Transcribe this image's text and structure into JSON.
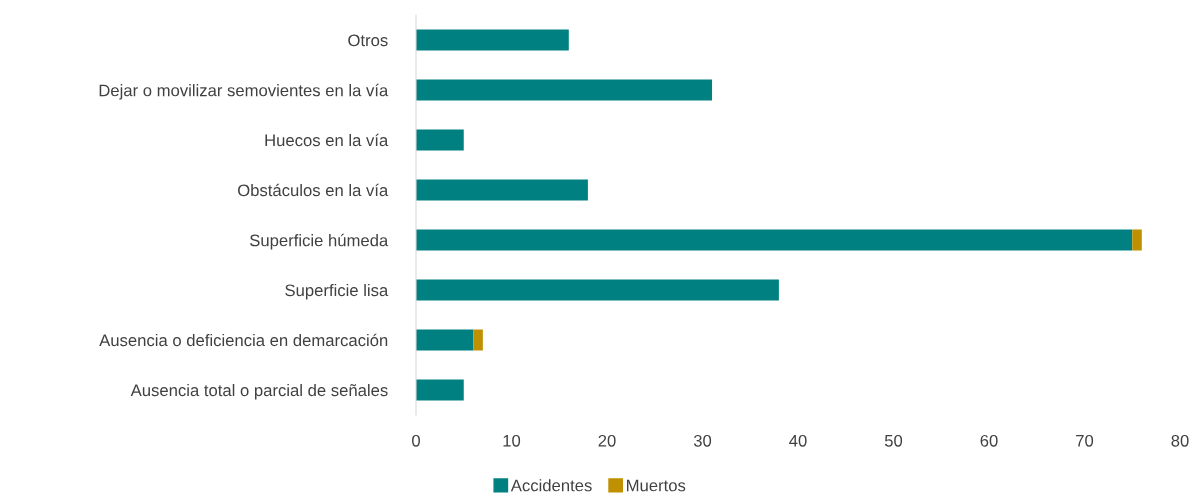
{
  "chart_data": {
    "type": "bar",
    "orientation": "horizontal",
    "stacked": true,
    "categories": [
      "Otros",
      "Dejar o movilizar semovientes en la vía",
      "Huecos en la vía",
      "Obstáculos en la vía",
      "Superficie húmeda",
      "Superficie lisa",
      "Ausencia o deficiencia en demarcación",
      "Ausencia total o parcial de señales"
    ],
    "series": [
      {
        "name": "Accidentes",
        "color": "#008080",
        "values": [
          16,
          31,
          5,
          18,
          75,
          38,
          6,
          5
        ]
      },
      {
        "name": "Muertos",
        "color": "#bf9000",
        "values": [
          0,
          0,
          0,
          0,
          1,
          0,
          1,
          0
        ]
      }
    ],
    "xlim": [
      0,
      80
    ],
    "xticks": [
      0,
      10,
      20,
      30,
      40,
      50,
      60,
      70,
      80
    ],
    "grid": false,
    "legend": "bottom"
  }
}
